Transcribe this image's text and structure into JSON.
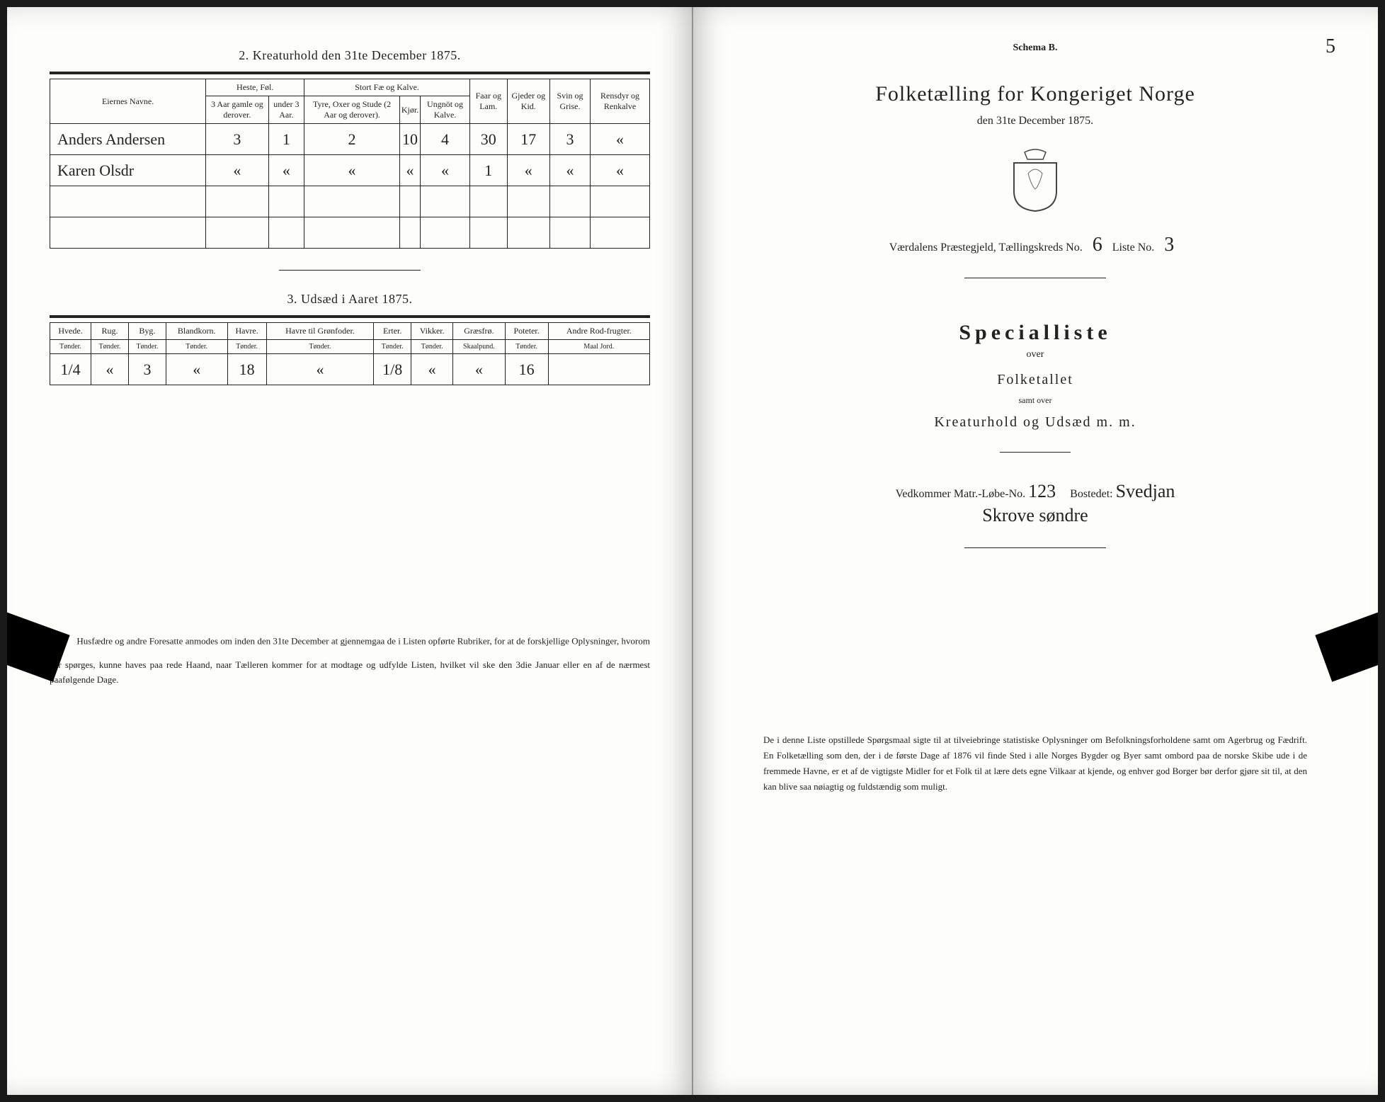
{
  "left": {
    "section2_title": "2.  Kreaturhold den 31te December 1875.",
    "table2": {
      "col_name": "Eiernes Navne.",
      "group_heste": "Heste, Føl.",
      "group_stort": "Stort Fæ og Kalve.",
      "col_faar": "Faar og Lam.",
      "col_gjed": "Gjeder og Kid.",
      "col_svin": "Svin og Grise.",
      "col_rens": "Rensdyr og Renkalve",
      "sub_heste1": "3 Aar gamle og derover.",
      "sub_heste2": "under 3 Aar.",
      "sub_stort1": "Tyre, Oxer og Stude (2 Aar og derover).",
      "sub_stort2": "Kjør.",
      "sub_stort3": "Ungnöt og Kalve.",
      "rows": [
        {
          "name": "Anders Andersen",
          "v1": "3",
          "v2": "1",
          "v3": "2",
          "v4": "10",
          "v5": "4",
          "v6": "30",
          "v7": "17",
          "v8": "3",
          "v9": "«"
        },
        {
          "name": "Karen Olsdr",
          "v1": "«",
          "v2": "«",
          "v3": "«",
          "v4": "«",
          "v5": "«",
          "v6": "1",
          "v7": "«",
          "v8": "«",
          "v9": "«"
        }
      ]
    },
    "section3_title": "3.  Udsæd i Aaret 1875.",
    "table3": {
      "headers": [
        "Hvede.",
        "Rug.",
        "Byg.",
        "Blandkorn.",
        "Havre.",
        "Havre til Grønfoder.",
        "Erter.",
        "Vikker.",
        "Græsfrø.",
        "Poteter.",
        "Andre Rod-frugter."
      ],
      "units": [
        "Tønder.",
        "Tønder.",
        "Tønder.",
        "Tønder.",
        "Tønder.",
        "Tønder.",
        "Tønder.",
        "Tønder.",
        "Skaalpund.",
        "Tønder.",
        "Maal Jord."
      ],
      "row": [
        "1/4",
        "«",
        "3",
        "«",
        "18",
        "«",
        "1/8",
        "«",
        "«",
        "16",
        ""
      ]
    },
    "note": "Husfædre og andre Foresatte anmodes om inden den 31te December at gjennemgaa de i Listen opførte Rubriker, for at de forskjellige Oplysninger, hvorom der spørges, kunne haves paa rede Haand, naar Tælleren kommer for at modtage og udfylde Listen, hvilket vil ske den 3die Januar eller en af de nærmest paafølgende Dage."
  },
  "right": {
    "schema": "Schema B.",
    "page_no": "5",
    "title": "Folketælling for Kongeriget Norge",
    "sub": "den 31te December 1875.",
    "line_prefix": "Værdalens Præstegjeld,  Tællingskreds No.",
    "kreds_no": "6",
    "liste_label": "Liste No.",
    "liste_no": "3",
    "special": "Specialliste",
    "over": "over",
    "folket": "Folketallet",
    "samt": "samt over",
    "kreat": "Kreaturhold og Udsæd m. m.",
    "vedk_prefix": "Vedkommer Matr.-Løbe-No.",
    "matr_no": "123",
    "bosted_label": "Bostedet:",
    "bosted": "Svedjan",
    "bosted_line2": "Skrove søndre",
    "note": "De i denne Liste opstillede Spørgsmaal sigte til at tilveiebringe statistiske Oplysninger om Befolkningsforholdene samt om Agerbrug og Fædrift.  En Folketælling som den, der i de første Dage af 1876 vil finde Sted i alle Norges Bygder og Byer samt ombord paa de norske Skibe ude i de fremmede Havne, er et af de vigtigste Midler for et Folk til at lære dets egne Vilkaar at kjende, og enhver god Borger bør derfor gjøre sit til, at den kan blive saa nøiagtig og fuldstændig som muligt."
  },
  "colors": {
    "ink": "#222222",
    "paper": "#fdfdf9"
  }
}
